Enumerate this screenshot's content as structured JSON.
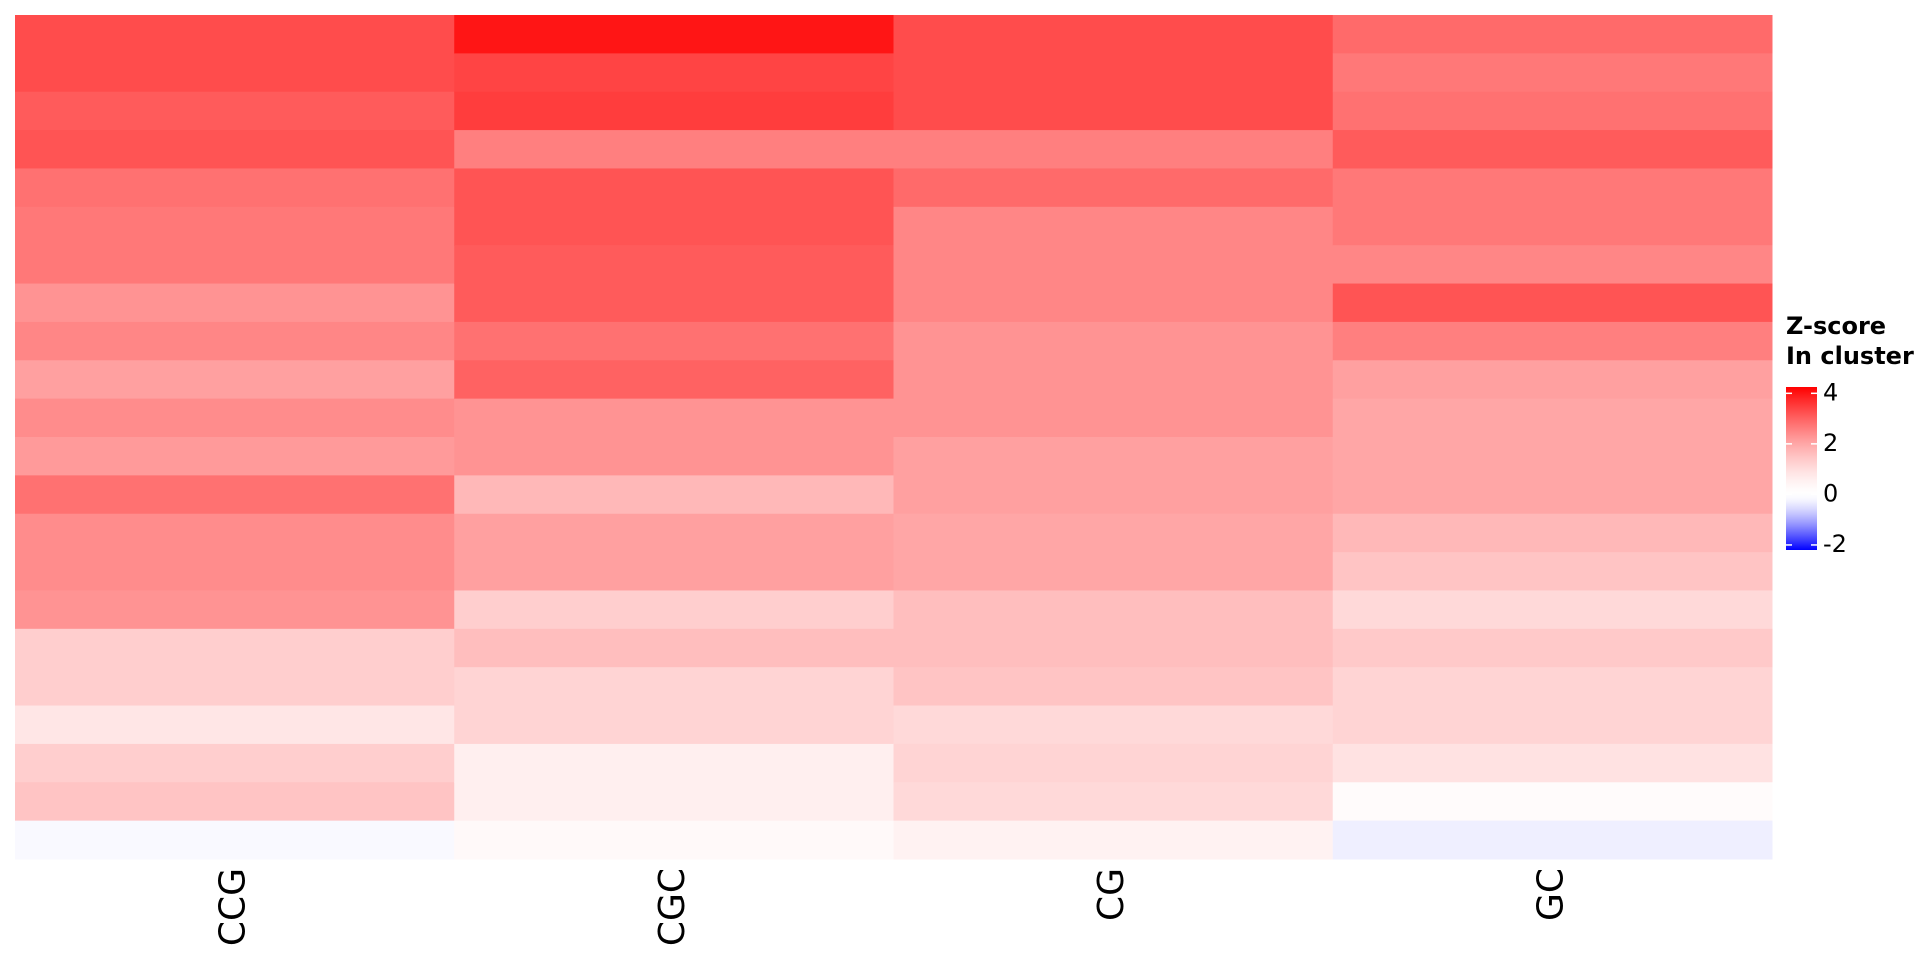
{
  "chart_data": {
    "type": "heatmap",
    "x": [
      "CCG",
      "CGC",
      "CG",
      "GC"
    ],
    "values": [
      [
        3.3,
        3.3,
        3.1,
        3.2,
        2.8,
        2.7,
        2.7,
        2.3,
        2.5,
        2.1,
        2.4,
        2.2,
        2.8,
        2.4,
        2.4,
        2.3,
        1.3,
        1.3,
        0.8,
        1.3,
        1.5,
        -0.15
      ],
      [
        4.0,
        3.4,
        3.5,
        2.6,
        3.2,
        3.2,
        3.1,
        3.1,
        2.8,
        3.0,
        2.3,
        2.3,
        1.7,
        2.1,
        2.1,
        1.3,
        1.6,
        1.2,
        1.2,
        0.6,
        0.6,
        0.3
      ],
      [
        3.3,
        3.3,
        3.3,
        2.6,
        2.9,
        2.5,
        2.5,
        2.5,
        2.3,
        2.3,
        2.3,
        2.1,
        2.1,
        2.0,
        2.0,
        1.6,
        1.6,
        1.5,
        1.1,
        1.2,
        1.1,
        0.5
      ],
      [
        2.9,
        2.7,
        2.8,
        3.1,
        2.7,
        2.7,
        2.5,
        3.2,
        2.6,
        2.1,
        2.0,
        2.0,
        2.0,
        1.7,
        1.5,
        1.1,
        1.4,
        1.2,
        1.2,
        0.9,
        0.2,
        -0.3
      ]
    ],
    "colorbar": {
      "title": [
        "Z-score",
        "In cluster"
      ],
      "zlim": [
        -2.2,
        4.25
      ],
      "zticks": [
        4,
        2,
        0,
        -2
      ],
      "colors": {
        "low": "#0000ff",
        "mid": "#ffffff",
        "high": "#ff0000"
      }
    }
  }
}
